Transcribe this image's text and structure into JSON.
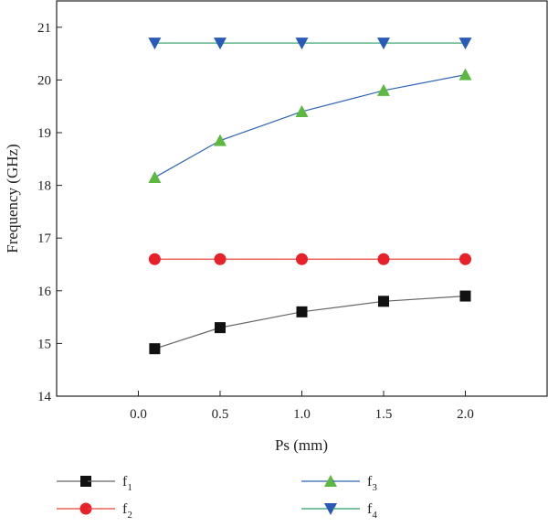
{
  "chart_data": {
    "type": "line",
    "xlabel": "Ps (mm)",
    "ylabel": "Frequency (GHz)",
    "xlim": [
      -0.5,
      2.5
    ],
    "ylim": [
      14,
      21.5
    ],
    "x_ticks": [
      "0.0",
      "0.5",
      "1.0",
      "1.5",
      "2.0"
    ],
    "y_ticks": [
      "14",
      "15",
      "16",
      "17",
      "18",
      "19",
      "20",
      "21"
    ],
    "x_tick_values": [
      0.0,
      0.5,
      1.0,
      1.5,
      2.0
    ],
    "y_tick_values": [
      14,
      15,
      16,
      17,
      18,
      19,
      20,
      21
    ],
    "x": [
      0.1,
      0.5,
      1.0,
      1.5,
      2.0
    ],
    "grid": false,
    "legend_position": "bottom",
    "series": [
      {
        "name": "f",
        "sub": "1",
        "marker": "square",
        "line_color": "#666666",
        "marker_color": "#111111",
        "values": [
          14.9,
          15.3,
          15.6,
          15.8,
          15.9
        ]
      },
      {
        "name": "f",
        "sub": "2",
        "marker": "circle",
        "line_color": "#e8453c",
        "marker_color": "#e8202a",
        "values": [
          16.6,
          16.6,
          16.6,
          16.6,
          16.6
        ]
      },
      {
        "name": "f",
        "sub": "3",
        "marker": "triangle-up",
        "line_color": "#2f63b5",
        "marker_color": "#5cb840",
        "values": [
          18.15,
          18.85,
          19.4,
          19.8,
          20.1
        ]
      },
      {
        "name": "f",
        "sub": "4",
        "marker": "triangle-down",
        "line_color": "#2c9e6a",
        "marker_color": "#2a5ab8",
        "values": [
          20.7,
          20.7,
          20.7,
          20.7,
          20.7
        ]
      }
    ]
  }
}
